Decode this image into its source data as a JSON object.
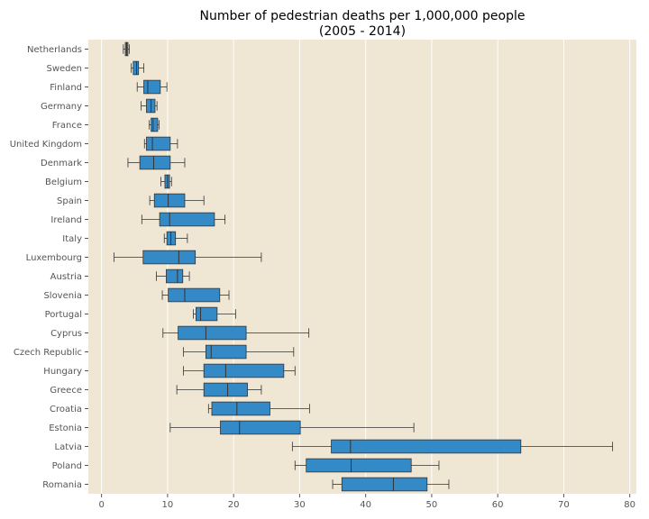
{
  "chart_data": {
    "type": "boxplot",
    "orientation": "horizontal",
    "title_lines": [
      "Number of pedestrian deaths per 1,000,000 people",
      "(2005 - 2014)"
    ],
    "xlabel": "",
    "ylabel": "",
    "xlim": [
      -2,
      81
    ],
    "xticks": [
      0,
      10,
      20,
      30,
      40,
      50,
      60,
      70,
      80
    ],
    "grid": "vertical",
    "colors": {
      "background": "#efe6d3",
      "box_fill": "#348ac7",
      "edge": "#333333",
      "grid": "#ffffff"
    },
    "categories": [
      "Netherlands",
      "Sweden",
      "Finland",
      "Germany",
      "France",
      "United Kingdom",
      "Denmark",
      "Belgium",
      "Spain",
      "Ireland",
      "Italy",
      "Luxembourg",
      "Austria",
      "Slovenia",
      "Portugal",
      "Cyprus",
      "Czech Republic",
      "Hungary",
      "Greece",
      "Croatia",
      "Estonia",
      "Latvia",
      "Poland",
      "Romania"
    ],
    "boxes": [
      {
        "category": "Netherlands",
        "whisker_low": 3.3,
        "q1": 3.6,
        "median": 3.8,
        "q3": 4.0,
        "whisker_high": 4.2
      },
      {
        "category": "Sweden",
        "whisker_low": 4.5,
        "q1": 4.8,
        "median": 5.3,
        "q3": 5.6,
        "whisker_high": 6.4
      },
      {
        "category": "Finland",
        "whisker_low": 5.4,
        "q1": 6.4,
        "median": 7.0,
        "q3": 8.9,
        "whisker_high": 9.9
      },
      {
        "category": "Germany",
        "whisker_low": 6.0,
        "q1": 6.8,
        "median": 7.5,
        "q3": 8.1,
        "whisker_high": 8.4
      },
      {
        "category": "France",
        "whisker_low": 7.2,
        "q1": 7.5,
        "median": 7.8,
        "q3": 8.5,
        "whisker_high": 8.7
      },
      {
        "category": "United Kingdom",
        "whisker_low": 6.5,
        "q1": 6.8,
        "median": 7.7,
        "q3": 10.4,
        "whisker_high": 11.5
      },
      {
        "category": "Denmark",
        "whisker_low": 4.0,
        "q1": 5.8,
        "median": 7.9,
        "q3": 10.4,
        "whisker_high": 12.6
      },
      {
        "category": "Belgium",
        "whisker_low": 9.0,
        "q1": 9.6,
        "median": 10.0,
        "q3": 10.3,
        "whisker_high": 10.6
      },
      {
        "category": "Spain",
        "whisker_low": 7.3,
        "q1": 8.0,
        "median": 10.1,
        "q3": 12.6,
        "whisker_high": 15.5
      },
      {
        "category": "Ireland",
        "whisker_low": 6.1,
        "q1": 8.8,
        "median": 10.3,
        "q3": 17.1,
        "whisker_high": 18.7
      },
      {
        "category": "Italy",
        "whisker_low": 9.5,
        "q1": 9.9,
        "median": 10.5,
        "q3": 11.2,
        "whisker_high": 13.0
      },
      {
        "category": "Luxembourg",
        "whisker_low": 1.9,
        "q1": 6.3,
        "median": 11.7,
        "q3": 14.2,
        "whisker_high": 24.2
      },
      {
        "category": "Austria",
        "whisker_low": 8.3,
        "q1": 9.8,
        "median": 11.5,
        "q3": 12.3,
        "whisker_high": 13.3
      },
      {
        "category": "Slovenia",
        "whisker_low": 9.2,
        "q1": 10.1,
        "median": 12.6,
        "q3": 17.9,
        "whisker_high": 19.3
      },
      {
        "category": "Portugal",
        "whisker_low": 13.9,
        "q1": 14.3,
        "median": 15.0,
        "q3": 17.5,
        "whisker_high": 20.3
      },
      {
        "category": "Cyprus",
        "whisker_low": 9.3,
        "q1": 11.6,
        "median": 15.8,
        "q3": 21.9,
        "whisker_high": 31.4
      },
      {
        "category": "Czech Republic",
        "whisker_low": 12.4,
        "q1": 15.8,
        "median": 16.6,
        "q3": 21.9,
        "whisker_high": 29.1
      },
      {
        "category": "Hungary",
        "whisker_low": 12.4,
        "q1": 15.5,
        "median": 18.8,
        "q3": 27.6,
        "whisker_high": 29.3
      },
      {
        "category": "Greece",
        "whisker_low": 11.4,
        "q1": 15.5,
        "median": 19.1,
        "q3": 22.1,
        "whisker_high": 24.2
      },
      {
        "category": "Croatia",
        "whisker_low": 16.2,
        "q1": 16.7,
        "median": 20.5,
        "q3": 25.5,
        "whisker_high": 31.5
      },
      {
        "category": "Estonia",
        "whisker_low": 10.4,
        "q1": 18.0,
        "median": 20.9,
        "q3": 30.1,
        "whisker_high": 47.3
      },
      {
        "category": "Latvia",
        "whisker_low": 28.9,
        "q1": 34.8,
        "median": 37.7,
        "q3": 63.5,
        "whisker_high": 77.4
      },
      {
        "category": "Poland",
        "whisker_low": 29.3,
        "q1": 31.0,
        "median": 37.8,
        "q3": 46.9,
        "whisker_high": 51.1
      },
      {
        "category": "Romania",
        "whisker_low": 35.0,
        "q1": 36.4,
        "median": 44.2,
        "q3": 49.3,
        "whisker_high": 52.6
      }
    ]
  }
}
